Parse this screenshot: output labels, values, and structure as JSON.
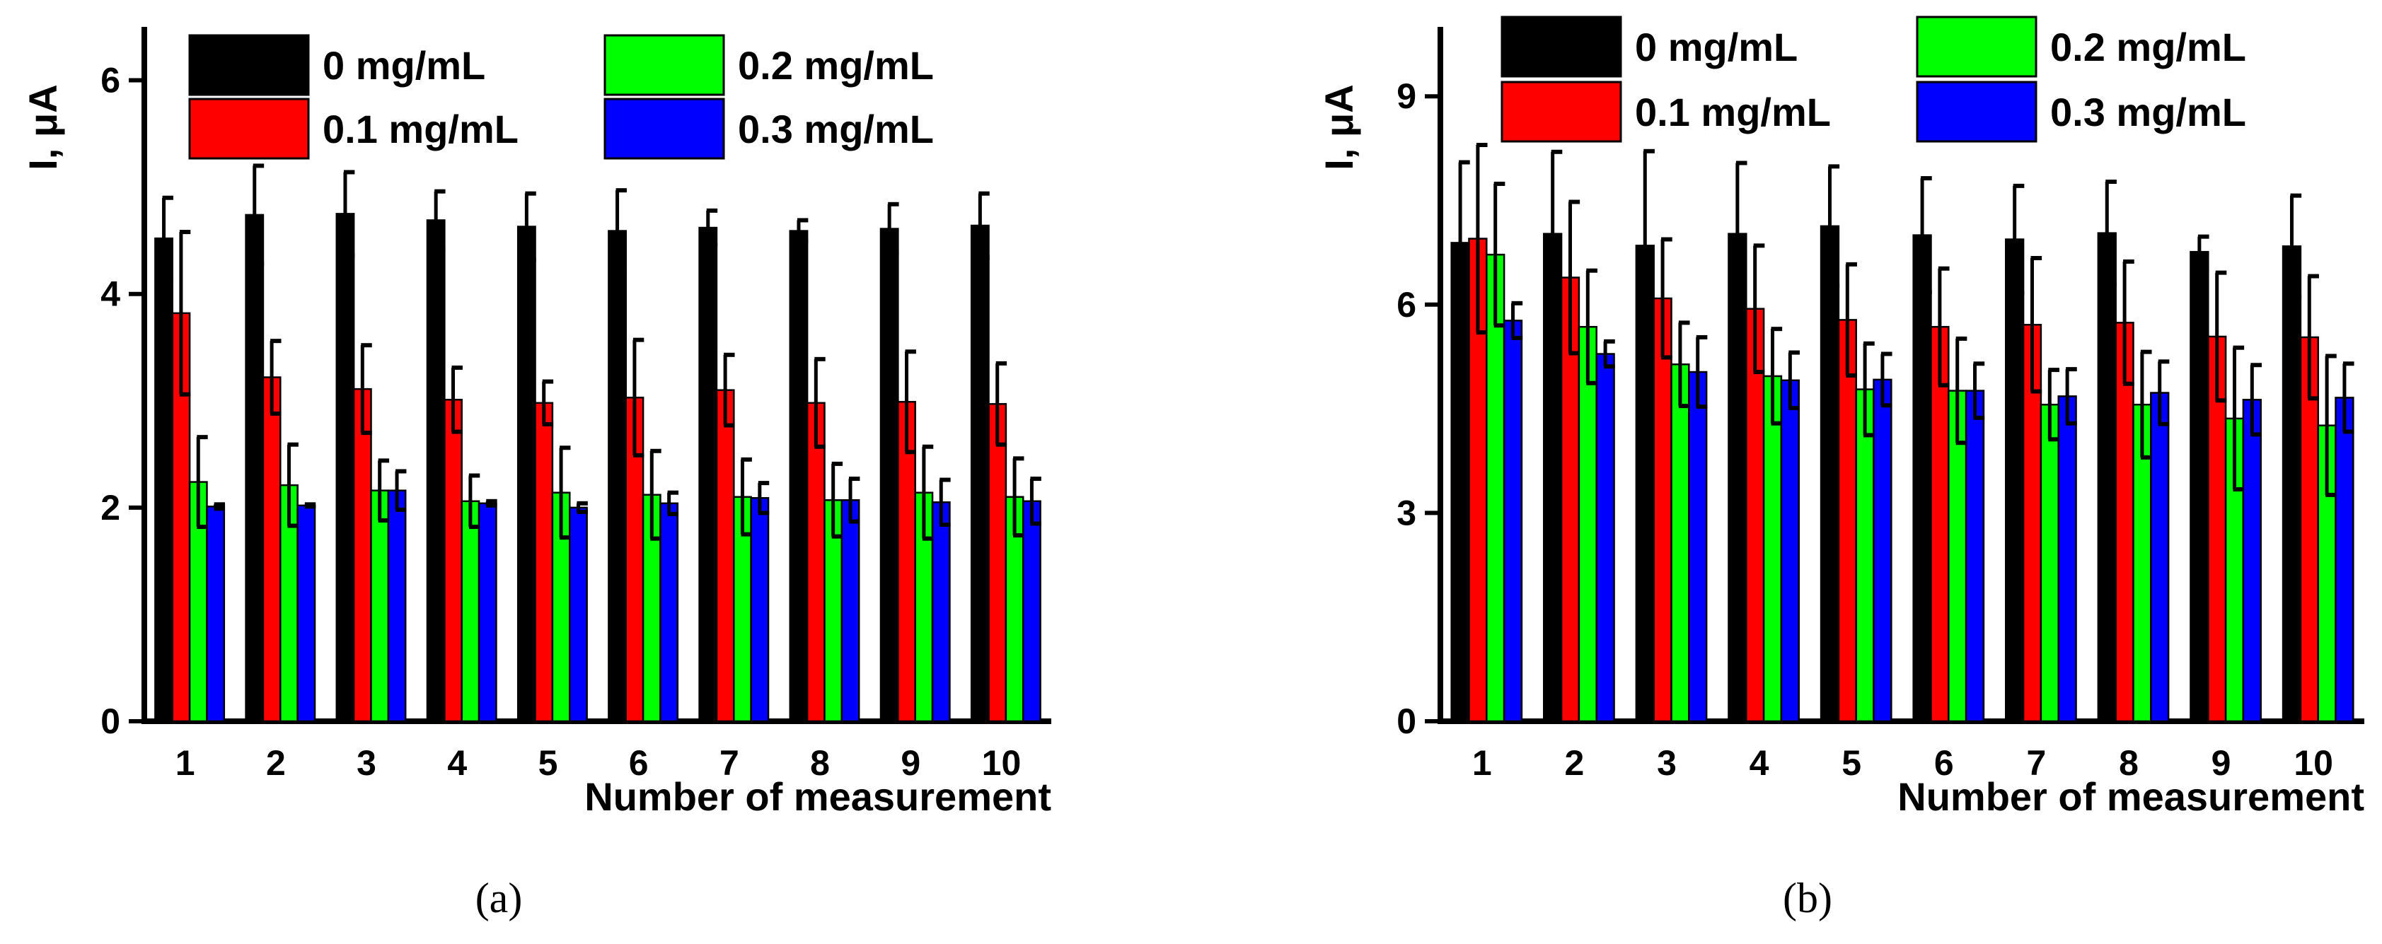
{
  "chart_data": [
    {
      "type": "bar",
      "panel": "(a)",
      "xlabel": "Number of measurement",
      "ylabel": "I, μA",
      "ylim": [
        0,
        6.5
      ],
      "yticks": [
        "0",
        "2",
        "4",
        "6"
      ],
      "ytick_values": [
        0,
        2,
        4,
        6
      ],
      "categories": [
        "1",
        "2",
        "3",
        "4",
        "5",
        "6",
        "7",
        "8",
        "9",
        "10"
      ],
      "legend": [
        "0 mg/mL",
        "0.1 mg/mL",
        "0.2 mg/mL",
        "0.3 mg/mL"
      ],
      "series": [
        {
          "name": "0 mg/mL",
          "color": "#000000",
          "values": [
            4.52,
            4.74,
            4.75,
            4.69,
            4.63,
            4.59,
            4.62,
            4.59,
            4.61,
            4.64
          ],
          "errors": [
            0.38,
            0.46,
            0.39,
            0.27,
            0.31,
            0.38,
            0.16,
            0.1,
            0.23,
            0.3
          ]
        },
        {
          "name": "0.1 mg/mL",
          "color": "#ff0000",
          "values": [
            3.82,
            3.22,
            3.11,
            3.01,
            2.98,
            3.03,
            3.1,
            2.98,
            2.99,
            2.97
          ],
          "errors": [
            0.76,
            0.34,
            0.41,
            0.3,
            0.2,
            0.54,
            0.33,
            0.41,
            0.47,
            0.38
          ]
        },
        {
          "name": "0.2 mg/mL",
          "color": "#00ff00",
          "values": [
            2.24,
            2.21,
            2.16,
            2.06,
            2.14,
            2.12,
            2.1,
            2.07,
            2.14,
            2.1
          ],
          "errors": [
            0.42,
            0.38,
            0.28,
            0.24,
            0.42,
            0.41,
            0.35,
            0.34,
            0.43,
            0.36
          ]
        },
        {
          "name": "0.3 mg/mL",
          "color": "#0000ff",
          "values": [
            2.01,
            2.02,
            2.16,
            2.04,
            2.0,
            2.04,
            2.09,
            2.07,
            2.05,
            2.06
          ],
          "errors": [
            0.02,
            0.01,
            0.18,
            0.02,
            0.04,
            0.1,
            0.14,
            0.2,
            0.21,
            0.21
          ]
        }
      ]
    },
    {
      "type": "bar",
      "panel": "(b)",
      "xlabel": "Number of measurement",
      "ylabel": "I, μA",
      "ylim": [
        0,
        10
      ],
      "yticks": [
        "0",
        "3",
        "6",
        "9"
      ],
      "ytick_values": [
        0,
        3,
        6,
        9
      ],
      "categories": [
        "1",
        "2",
        "3",
        "4",
        "5",
        "6",
        "7",
        "8",
        "9",
        "10"
      ],
      "legend": [
        "0 mg/mL",
        "0.1 mg/mL",
        "0.2 mg/mL",
        "0.3 mg/mL"
      ],
      "series": [
        {
          "name": "0 mg/mL",
          "color": "#000000",
          "values": [
            6.89,
            7.02,
            6.85,
            7.02,
            7.13,
            7.0,
            6.94,
            7.03,
            6.76,
            6.84
          ],
          "errors": [
            1.16,
            1.18,
            1.36,
            1.02,
            0.86,
            0.82,
            0.77,
            0.74,
            0.22,
            0.73
          ]
        },
        {
          "name": "0.1 mg/mL",
          "color": "#ff0000",
          "values": [
            6.95,
            6.39,
            6.09,
            5.94,
            5.78,
            5.68,
            5.71,
            5.74,
            5.54,
            5.53
          ],
          "errors": [
            1.35,
            1.09,
            0.85,
            0.91,
            0.8,
            0.84,
            0.96,
            0.88,
            0.92,
            0.88
          ]
        },
        {
          "name": "0.2 mg/mL",
          "color": "#00ff00",
          "values": [
            6.72,
            5.68,
            5.14,
            4.97,
            4.78,
            4.76,
            4.56,
            4.56,
            4.36,
            4.26
          ],
          "errors": [
            1.02,
            0.81,
            0.6,
            0.68,
            0.66,
            0.75,
            0.5,
            0.76,
            1.02,
            1.0
          ]
        },
        {
          "name": "0.3 mg/mL",
          "color": "#0000ff",
          "values": [
            5.77,
            5.29,
            5.03,
            4.91,
            4.92,
            4.76,
            4.68,
            4.73,
            4.63,
            4.66
          ],
          "errors": [
            0.25,
            0.18,
            0.5,
            0.4,
            0.37,
            0.39,
            0.39,
            0.45,
            0.5,
            0.49
          ]
        }
      ]
    }
  ]
}
